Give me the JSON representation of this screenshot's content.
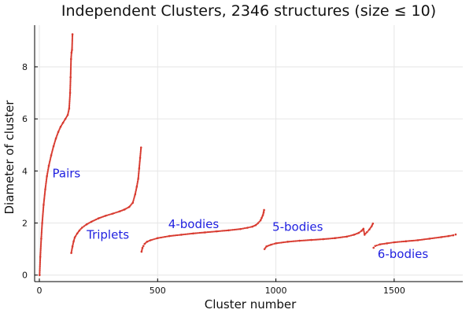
{
  "chart_data": {
    "type": "scatter",
    "title": "Independent Clusters, 2346 structures (size ≤ 10)",
    "xlabel": "Cluster number",
    "ylabel": "Diameter of cluster",
    "xlim": [
      -20,
      1790
    ],
    "ylim": [
      -0.25,
      9.6
    ],
    "x_ticks": [
      0,
      500,
      1000,
      1500
    ],
    "y_ticks": [
      0,
      2,
      4,
      6,
      8
    ],
    "grid": true,
    "legend": "none",
    "marker_color": "#d83a2f",
    "annotation_color": "#1f1fe0",
    "series": [
      {
        "label": "Pairs",
        "x": [
          1,
          4,
          8,
          12,
          18,
          25,
          32,
          40,
          50,
          60,
          70,
          80,
          90,
          100,
          110,
          120,
          126,
          130,
          132,
          134,
          136,
          138,
          140
        ],
        "y": [
          0.0,
          0.7,
          1.4,
          2.0,
          2.7,
          3.3,
          3.8,
          4.2,
          4.6,
          4.95,
          5.25,
          5.5,
          5.7,
          5.85,
          6.0,
          6.15,
          6.4,
          7.0,
          7.6,
          8.3,
          8.55,
          8.65,
          9.25
        ]
      },
      {
        "label": "Triplets",
        "x": [
          135,
          140,
          145,
          150,
          160,
          170,
          180,
          200,
          220,
          250,
          280,
          310,
          340,
          360,
          380,
          395,
          405,
          412,
          418,
          422,
          426,
          430
        ],
        "y": [
          0.85,
          1.1,
          1.3,
          1.45,
          1.6,
          1.72,
          1.82,
          1.95,
          2.05,
          2.18,
          2.28,
          2.36,
          2.45,
          2.52,
          2.62,
          2.78,
          3.1,
          3.4,
          3.7,
          4.1,
          4.5,
          4.9
        ]
      },
      {
        "label": "4-bodies",
        "x": [
          432,
          436,
          440,
          445,
          455,
          470,
          500,
          550,
          600,
          650,
          700,
          750,
          800,
          850,
          880,
          900,
          915,
          925,
          935,
          940,
          945,
          948,
          950
        ],
        "y": [
          0.9,
          1.05,
          1.12,
          1.2,
          1.28,
          1.34,
          1.42,
          1.5,
          1.55,
          1.6,
          1.64,
          1.68,
          1.72,
          1.77,
          1.82,
          1.86,
          1.92,
          2.0,
          2.1,
          2.2,
          2.3,
          2.4,
          2.5
        ]
      },
      {
        "label": "5-bodies",
        "x": [
          952,
          960,
          980,
          1000,
          1050,
          1100,
          1150,
          1200,
          1250,
          1300,
          1330,
          1350,
          1362,
          1370,
          1375,
          1385,
          1395,
          1405,
          1410
        ],
        "y": [
          1.0,
          1.1,
          1.17,
          1.22,
          1.28,
          1.32,
          1.35,
          1.38,
          1.42,
          1.48,
          1.55,
          1.62,
          1.7,
          1.78,
          1.55,
          1.65,
          1.75,
          1.88,
          1.98
        ]
      },
      {
        "label": "6-bodies",
        "x": [
          1413,
          1420,
          1440,
          1470,
          1500,
          1550,
          1600,
          1650,
          1700,
          1730,
          1750,
          1760
        ],
        "y": [
          1.05,
          1.12,
          1.18,
          1.22,
          1.26,
          1.3,
          1.34,
          1.4,
          1.46,
          1.5,
          1.53,
          1.56
        ]
      }
    ],
    "annotations": [
      {
        "text": "Pairs",
        "x": 55,
        "y": 3.9
      },
      {
        "text": "Triplets",
        "x": 200,
        "y": 1.55
      },
      {
        "text": "4-bodies",
        "x": 545,
        "y": 1.95
      },
      {
        "text": "5-bodies",
        "x": 985,
        "y": 1.85
      },
      {
        "text": "6-bodies",
        "x": 1430,
        "y": 0.8
      }
    ]
  }
}
